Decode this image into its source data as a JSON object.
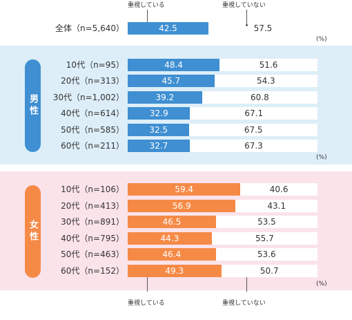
{
  "chart_data": {
    "type": "bar",
    "stacked": true,
    "orientation": "horizontal",
    "percent_unit": "(%)",
    "legend": {
      "important": "重視している",
      "not_important": "重視していない"
    },
    "colors": {
      "male": "#3f8fd2",
      "female": "#f58a47",
      "rest": "#ffffff"
    },
    "groups": [
      {
        "key": "all",
        "label": "",
        "color": "#3f8fd2",
        "rows": [
          {
            "label": "全体（n=5,640）",
            "a": 42.5,
            "b": 57.5
          }
        ]
      },
      {
        "key": "male",
        "label": "男性",
        "color": "#3f8fd2",
        "rows": [
          {
            "label": "10代（n=95）",
            "a": 48.4,
            "b": 51.6
          },
          {
            "label": "20代（n=313）",
            "a": 45.7,
            "b": 54.3
          },
          {
            "label": "30代（n=1,002）",
            "a": 39.2,
            "b": 60.8
          },
          {
            "label": "40代（n=614）",
            "a": 32.9,
            "b": 67.1
          },
          {
            "label": "50代（n=585）",
            "a": 32.5,
            "b": 67.5
          },
          {
            "label": "60代（n=211）",
            "a": 32.7,
            "b": 67.3
          }
        ]
      },
      {
        "key": "female",
        "label": "女性",
        "color": "#f58a47",
        "rows": [
          {
            "label": "10代（n=106）",
            "a": 59.4,
            "b": 40.6
          },
          {
            "label": "20代（n=413）",
            "a": 56.9,
            "b": 43.1
          },
          {
            "label": "30代（n=891）",
            "a": 46.5,
            "b": 53.5
          },
          {
            "label": "40代（n=795）",
            "a": 44.3,
            "b": 55.7
          },
          {
            "label": "50代（n=463）",
            "a": 46.4,
            "b": 53.6
          },
          {
            "label": "60代（n=152）",
            "a": 49.3,
            "b": 50.7
          }
        ]
      }
    ]
  }
}
